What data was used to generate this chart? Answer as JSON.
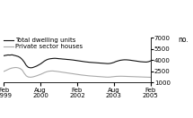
{
  "title": "",
  "ylabel": "no.",
  "ylim": [
    1000,
    7000
  ],
  "yticks": [
    1000,
    2500,
    4000,
    5500,
    7000
  ],
  "xtick_labels": [
    "Feb\n1999",
    "Aug\n2000",
    "Feb\n2002",
    "Aug\n2003",
    "Feb\n2005"
  ],
  "xtick_positions": [
    0,
    18,
    36,
    54,
    72
  ],
  "total_color": "#111111",
  "private_color": "#aaaaaa",
  "legend_total": "Total dwelling units",
  "legend_private": "Private sector houses",
  "total_values": [
    4600,
    4650,
    4700,
    4680,
    4720,
    4650,
    4580,
    4500,
    4350,
    4100,
    3750,
    3300,
    3050,
    2980,
    3000,
    3100,
    3200,
    3350,
    3500,
    3700,
    3900,
    4050,
    4150,
    4200,
    4230,
    4250,
    4230,
    4200,
    4180,
    4150,
    4130,
    4100,
    4080,
    4050,
    4020,
    3980,
    3940,
    3900,
    3860,
    3820,
    3780,
    3750,
    3720,
    3700,
    3680,
    3660,
    3640,
    3620,
    3600,
    3580,
    3560,
    3540,
    3560,
    3620,
    3700,
    3820,
    3900,
    3980,
    4020,
    4050,
    4050,
    4030,
    4000,
    3960,
    3920,
    3880,
    3840,
    3800,
    3780,
    3760,
    3750,
    3800,
    3900
  ],
  "private_values": [
    2500,
    2620,
    2750,
    2870,
    2950,
    3000,
    3020,
    2980,
    2880,
    2680,
    2250,
    1900,
    1750,
    1720,
    1750,
    1820,
    1900,
    2000,
    2100,
    2220,
    2350,
    2450,
    2520,
    2550,
    2560,
    2530,
    2500,
    2460,
    2420,
    2380,
    2340,
    2300,
    2260,
    2220,
    2180,
    2140,
    2100,
    2060,
    2020,
    1990,
    1960,
    1930,
    1900,
    1880,
    1860,
    1840,
    1820,
    1800,
    1780,
    1760,
    1740,
    1730,
    1740,
    1770,
    1800,
    1830,
    1840,
    1850,
    1850,
    1840,
    1830,
    1820,
    1810,
    1800,
    1790,
    1780,
    1770,
    1760,
    1750,
    1740,
    1730,
    1720,
    1710
  ]
}
